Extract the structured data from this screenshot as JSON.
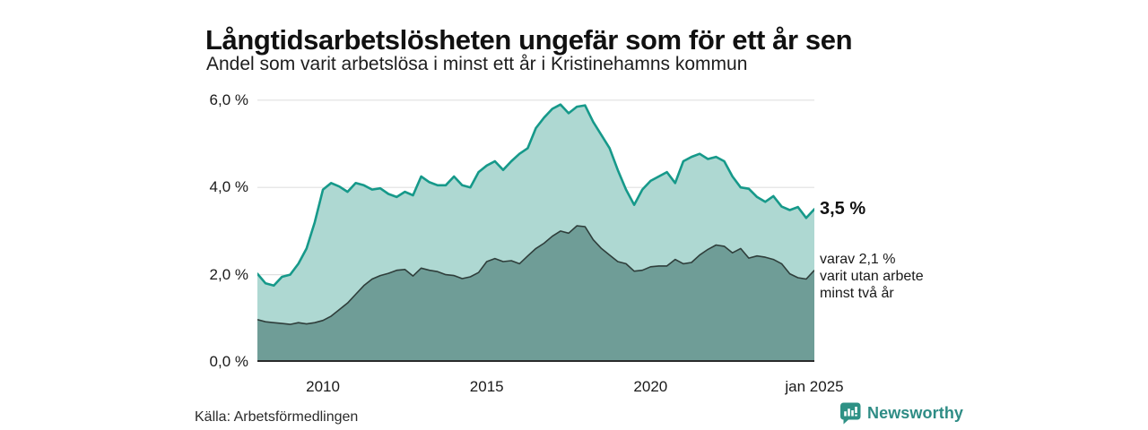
{
  "header": {
    "title": "Långtidsarbetslösheten ungefär som för ett år sen",
    "subtitle": "Andel som varit arbetslösa i minst ett år i Kristinehamns kommun"
  },
  "annotations": {
    "total_value": "3,5 %",
    "breakdown_line1": "varav 2,1 %",
    "breakdown_line2": "varit utan arbete",
    "breakdown_line3": "minst två år"
  },
  "footer": {
    "source": "Källa: Arbetsförmedlingen",
    "brand": "Newsworthy"
  },
  "colors": {
    "area_total_fill": "#aed8d2",
    "area_total_line": "#16998a",
    "area_two_year_fill": "#6f9d97",
    "area_two_year_line": "#2f3e3b",
    "gridline": "#e0e0e0",
    "axis_baseline": "#2b2b2b",
    "brand_teal": "#2e8c85",
    "text": "#1a1a1a"
  },
  "chart_data": {
    "type": "area",
    "title": "Långtidsarbetslösheten ungefär som för ett år sen",
    "subtitle": "Andel som varit arbetslösa i minst ett år i Kristinehamns kommun",
    "xlabel": "",
    "ylabel": "",
    "grid": "horizontal",
    "legend_position": "none",
    "x_domain": [
      2008,
      2025
    ],
    "ylim": [
      0,
      6.16
    ],
    "x": [
      2008,
      2008.25,
      2008.5,
      2008.75,
      2009,
      2009.25,
      2009.5,
      2009.75,
      2010,
      2010.25,
      2010.5,
      2010.75,
      2011,
      2011.25,
      2011.5,
      2011.75,
      2012,
      2012.25,
      2012.5,
      2012.75,
      2013,
      2013.25,
      2013.5,
      2013.75,
      2014,
      2014.25,
      2014.5,
      2014.75,
      2015,
      2015.25,
      2015.5,
      2015.75,
      2016,
      2016.25,
      2016.5,
      2016.75,
      2017,
      2017.25,
      2017.5,
      2017.75,
      2018,
      2018.25,
      2018.5,
      2018.75,
      2019,
      2019.25,
      2019.5,
      2019.75,
      2020,
      2020.25,
      2020.5,
      2020.75,
      2021,
      2021.25,
      2021.5,
      2021.75,
      2022,
      2022.25,
      2022.5,
      2022.75,
      2023,
      2023.25,
      2023.5,
      2023.75,
      2024,
      2024.25,
      2024.5,
      2024.75,
      2025
    ],
    "series": [
      {
        "name": "Andel som varit arbetslösa i minst ett år",
        "end_label": "3,5 %",
        "values": [
          2.02,
          1.8,
          1.75,
          1.95,
          2,
          2.25,
          2.6,
          3.2,
          3.95,
          4.1,
          4.02,
          3.9,
          4.1,
          4.05,
          3.95,
          3.98,
          3.85,
          3.78,
          3.9,
          3.82,
          4.25,
          4.12,
          4.05,
          4.05,
          4.25,
          4.05,
          4,
          4.35,
          4.5,
          4.6,
          4.4,
          4.6,
          4.77,
          4.9,
          5.36,
          5.6,
          5.8,
          5.9,
          5.7,
          5.85,
          5.88,
          5.5,
          5.2,
          4.9,
          4.4,
          3.95,
          3.6,
          3.95,
          4.15,
          4.25,
          4.35,
          4.1,
          4.6,
          4.7,
          4.77,
          4.65,
          4.7,
          4.6,
          4.25,
          4,
          3.97,
          3.78,
          3.67,
          3.8,
          3.56,
          3.48,
          3.55,
          3.3,
          3.5
        ]
      },
      {
        "name": "varav utan arbete minst två år",
        "end_label": "2,1 %",
        "values": [
          0.97,
          0.92,
          0.9,
          0.88,
          0.86,
          0.9,
          0.87,
          0.9,
          0.95,
          1.05,
          1.2,
          1.35,
          1.55,
          1.75,
          1.9,
          1.98,
          2.03,
          2.1,
          2.12,
          1.97,
          2.15,
          2.1,
          2.07,
          2,
          1.98,
          1.91,
          1.95,
          2.05,
          2.3,
          2.37,
          2.3,
          2.32,
          2.25,
          2.43,
          2.6,
          2.72,
          2.88,
          3,
          2.95,
          3.12,
          3.1,
          2.8,
          2.6,
          2.45,
          2.3,
          2.25,
          2.08,
          2.1,
          2.18,
          2.2,
          2.2,
          2.35,
          2.25,
          2.28,
          2.45,
          2.58,
          2.68,
          2.65,
          2.5,
          2.6,
          2.38,
          2.43,
          2.4,
          2.35,
          2.25,
          2.02,
          1.93,
          1.9,
          2.1
        ]
      }
    ],
    "x_ticks": [
      {
        "value": 2010,
        "label": "2010"
      },
      {
        "value": 2015,
        "label": "2015"
      },
      {
        "value": 2020,
        "label": "2020"
      },
      {
        "value": 2025,
        "label": "jan 2025"
      }
    ],
    "y_ticks": [
      {
        "value": 0,
        "label": "0,0 %"
      },
      {
        "value": 2,
        "label": "2,0 %"
      },
      {
        "value": 4,
        "label": "4,0 %"
      },
      {
        "value": 6,
        "label": "6,0 %"
      }
    ]
  }
}
